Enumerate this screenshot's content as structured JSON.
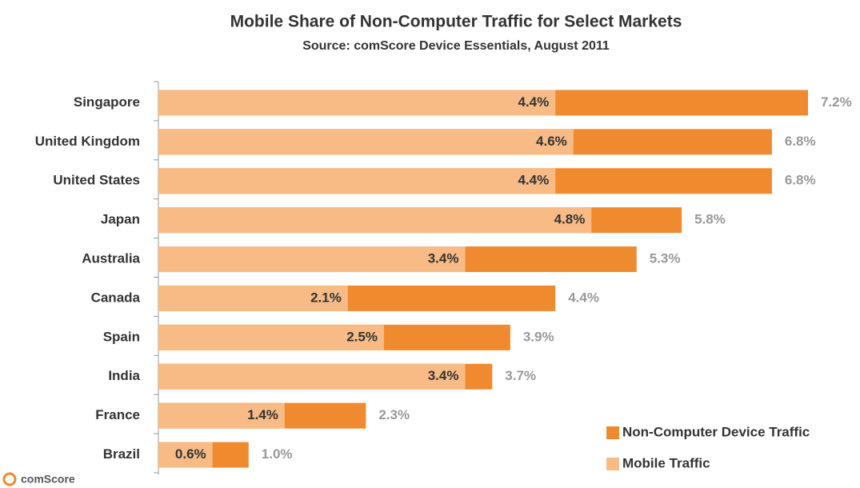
{
  "chart_data": {
    "type": "bar",
    "orientation": "horizontal",
    "overlap": true,
    "title": "Mobile Share of Non-Computer Traffic for Select  Markets",
    "subtitle": "Source: comScore Device Essentials, August 2011",
    "categories": [
      "Singapore",
      "United Kingdom",
      "United States",
      "Japan",
      "Australia",
      "Canada",
      "Spain",
      "India",
      "France",
      "Brazil"
    ],
    "series": [
      {
        "name": "Non-Computer Device Traffic",
        "color": "#f08a2e",
        "values": [
          7.2,
          6.8,
          6.8,
          5.8,
          5.3,
          4.4,
          3.9,
          3.7,
          2.3,
          1.0
        ],
        "value_labels": [
          "7.2%",
          "6.8%",
          "6.8%",
          "5.8%",
          "5.3%",
          "4.4%",
          "3.9%",
          "3.7%",
          "2.3%",
          "1.0%"
        ]
      },
      {
        "name": "Mobile Traffic",
        "color": "#f8bb85",
        "values": [
          4.4,
          4.6,
          4.4,
          4.8,
          3.4,
          2.1,
          2.5,
          3.4,
          1.4,
          0.6
        ],
        "value_labels": [
          "4.4%",
          "4.6%",
          "4.4%",
          "4.8%",
          "3.4%",
          "2.1%",
          "2.5%",
          "3.4%",
          "1.4%",
          "0.6%"
        ]
      }
    ],
    "legend": "bottom-right",
    "logo": "comScore"
  }
}
